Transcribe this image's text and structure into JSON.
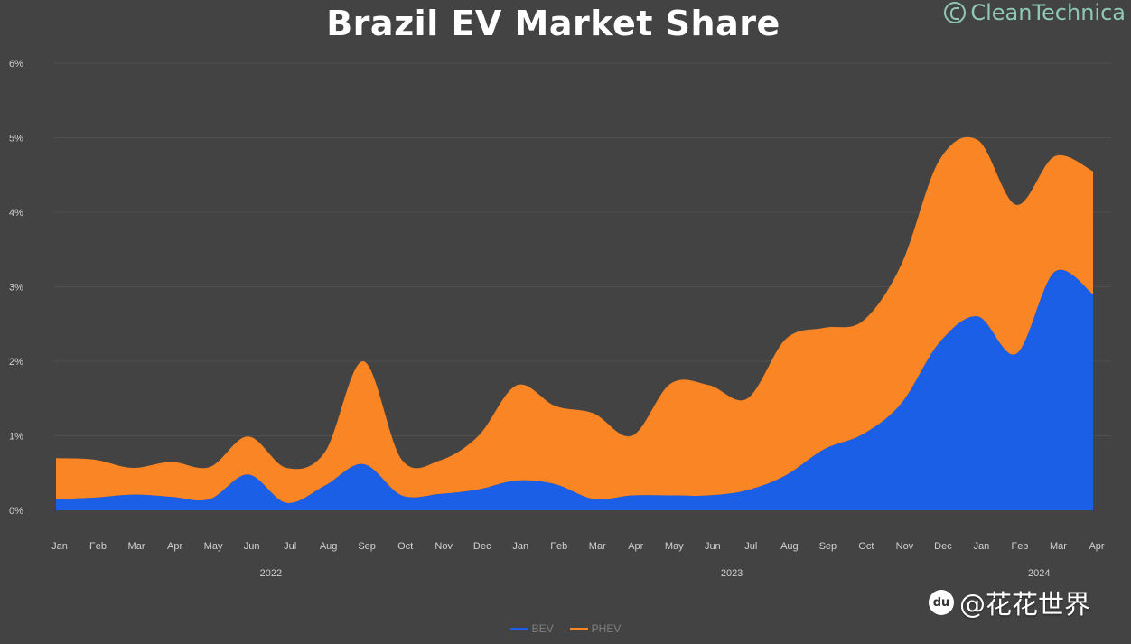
{
  "chart_data": {
    "type": "area",
    "stacked": true,
    "title": "Brazil EV Market Share",
    "categories": [
      "Jan",
      "Feb",
      "Mar",
      "Apr",
      "May",
      "Jun",
      "Jul",
      "Aug",
      "Sep",
      "Oct",
      "Nov",
      "Dec",
      "Jan",
      "Feb",
      "Mar",
      "Apr",
      "May",
      "Jun",
      "Jul",
      "Aug",
      "Sep",
      "Oct",
      "Nov",
      "Dec",
      "Jan",
      "Feb",
      "Mar",
      "Apr"
    ],
    "year_groups": [
      {
        "label": "2022",
        "start": 0,
        "end": 11
      },
      {
        "label": "2023",
        "start": 12,
        "end": 23
      },
      {
        "label": "2024",
        "start": 24,
        "end": 27
      }
    ],
    "series": [
      {
        "name": "BEV",
        "color": "#1a5fe6",
        "values": [
          0.15,
          0.17,
          0.21,
          0.18,
          0.15,
          0.48,
          0.1,
          0.33,
          0.62,
          0.2,
          0.22,
          0.28,
          0.4,
          0.35,
          0.15,
          0.2,
          0.2,
          0.2,
          0.27,
          0.47,
          0.82,
          1.02,
          1.43,
          2.25,
          2.6,
          2.1,
          3.2,
          2.9
        ]
      },
      {
        "name": "PHEV",
        "color": "#f98524",
        "values": [
          0.55,
          0.51,
          0.36,
          0.47,
          0.43,
          0.51,
          0.47,
          0.45,
          1.38,
          0.48,
          0.45,
          0.72,
          1.28,
          1.05,
          1.15,
          0.8,
          1.5,
          1.48,
          1.23,
          1.83,
          1.63,
          1.52,
          1.86,
          2.45,
          2.37,
          2.0,
          1.55,
          1.65
        ]
      }
    ],
    "ylim": [
      0,
      6
    ],
    "yticks": [
      "0%",
      "1%",
      "2%",
      "3%",
      "4%",
      "5%",
      "6%"
    ],
    "legend_position": "bottom"
  },
  "logo": {
    "text": "CleanTechnica"
  },
  "watermark": {
    "text": "@花花世界",
    "icon_label": "du"
  }
}
